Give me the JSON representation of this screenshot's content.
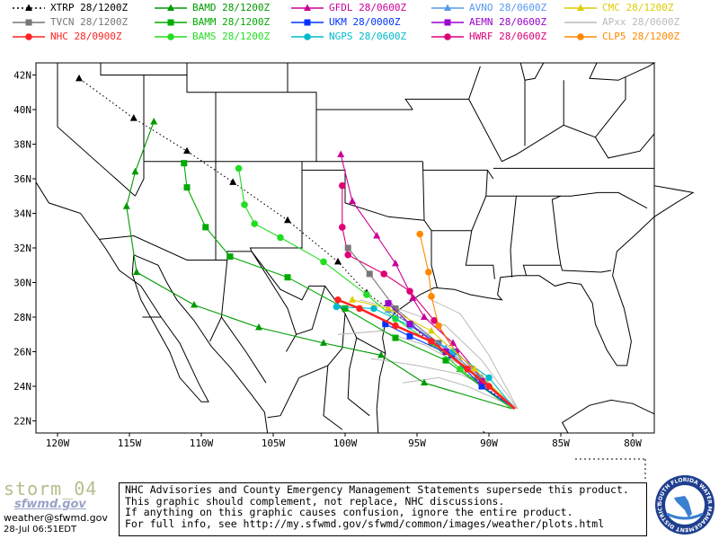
{
  "legend": [
    {
      "id": "xtrp",
      "label": "XTRP  28/1200Z",
      "color": "#000000",
      "marker": "triangle",
      "dashed": true
    },
    {
      "id": "bamd",
      "label": "BAMD 28/1200Z",
      "color": "#009900",
      "marker": "triangle"
    },
    {
      "id": "gfdl",
      "label": "GFDL  28/0600Z",
      "color": "#cc0099",
      "marker": "triangle"
    },
    {
      "id": "avno",
      "label": "AVNO 28/0600Z",
      "color": "#5599ee",
      "marker": "triangle"
    },
    {
      "id": "cmc",
      "label": "CMC 28/1200Z",
      "color": "#ddcc00",
      "marker": "triangle"
    },
    {
      "id": "tvcn",
      "label": "TVCN  28/1200Z",
      "color": "#777777",
      "marker": "square"
    },
    {
      "id": "bamm",
      "label": "BAMM 28/1200Z",
      "color": "#00aa00",
      "marker": "square"
    },
    {
      "id": "ukm",
      "label": "UKM   28/0000Z",
      "color": "#0033ff",
      "marker": "square"
    },
    {
      "id": "aemn",
      "label": "AEMN  28/0600Z",
      "color": "#9900cc",
      "marker": "square"
    },
    {
      "id": "apxx",
      "label": "APxx 28/0600Z",
      "color": "#bbbbbb",
      "marker": "none"
    },
    {
      "id": "nhc",
      "label": "NHC   28/0900Z",
      "color": "#ff2222",
      "marker": "circle"
    },
    {
      "id": "bams",
      "label": "BAMS 28/1200Z",
      "color": "#22dd22",
      "marker": "circle"
    },
    {
      "id": "ngps",
      "label": "NGPS 28/0600Z",
      "color": "#00bbcc",
      "marker": "circle"
    },
    {
      "id": "hwrf",
      "label": "HWRF  28/0600Z",
      "color": "#dd0077",
      "marker": "circle"
    },
    {
      "id": "clp5",
      "label": "CLP5 28/1200Z",
      "color": "#ff8800",
      "marker": "circle"
    }
  ],
  "axes": {
    "lon_labels": [
      "120W",
      "115W",
      "110W",
      "105W",
      "100W",
      "95W",
      "90W",
      "85W",
      "80W"
    ],
    "lon_values": [
      -120,
      -115,
      -110,
      -105,
      -100,
      -95,
      -90,
      -85,
      -80
    ],
    "lat_labels": [
      "42N",
      "40N",
      "38N",
      "36N",
      "34N",
      "32N",
      "30N",
      "28N",
      "26N",
      "24N",
      "22N"
    ],
    "lat_values": [
      42,
      40,
      38,
      36,
      34,
      32,
      30,
      28,
      26,
      24,
      22
    ],
    "lon_range": [
      -121.5,
      -78.5
    ],
    "lat_range": [
      21.3,
      42.7
    ]
  },
  "tracks": [
    {
      "id": "xtrp",
      "color": "#000000",
      "dashed": true,
      "marker": "triangle",
      "points": [
        [
          -88.2,
          22.7
        ],
        [
          -92,
          25
        ],
        [
          -95.5,
          27.6
        ],
        [
          -98.5,
          29.4
        ],
        [
          -100.5,
          31.2
        ],
        [
          -104,
          33.6
        ],
        [
          -107.8,
          35.8
        ],
        [
          -111,
          37.6
        ],
        [
          -114.7,
          39.5
        ],
        [
          -118.5,
          41.8
        ]
      ]
    },
    {
      "id": "bamd",
      "color": "#009900",
      "marker": "triangle",
      "points": [
        [
          -88.4,
          22.7
        ],
        [
          -94.5,
          24.2
        ],
        [
          -97.5,
          25.8
        ],
        [
          -101.5,
          26.5
        ],
        [
          -106,
          27.4
        ],
        [
          -110.5,
          28.7
        ],
        [
          -114.5,
          30.6
        ],
        [
          -115.2,
          34.4
        ],
        [
          -114.6,
          36.4
        ],
        [
          -113.3,
          39.3
        ]
      ]
    },
    {
      "id": "bamm",
      "color": "#00aa00",
      "marker": "square",
      "points": [
        [
          -88.4,
          22.7
        ],
        [
          -93,
          25.5
        ],
        [
          -96.5,
          26.8
        ],
        [
          -100,
          28.5
        ],
        [
          -104,
          30.3
        ],
        [
          -108,
          31.5
        ],
        [
          -109.7,
          33.2
        ],
        [
          -111,
          35.5
        ],
        [
          -111.2,
          36.9
        ]
      ]
    },
    {
      "id": "bams",
      "color": "#22dd22",
      "marker": "circle",
      "points": [
        [
          -88.4,
          22.7
        ],
        [
          -92,
          25
        ],
        [
          -94,
          26.5
        ],
        [
          -96.5,
          27.9
        ],
        [
          -98.5,
          29.3
        ],
        [
          -101.5,
          31.2
        ],
        [
          -104.5,
          32.6
        ],
        [
          -106.3,
          33.4
        ],
        [
          -107,
          34.5
        ],
        [
          -107.4,
          36.6
        ]
      ]
    },
    {
      "id": "gfdl",
      "color": "#cc0099",
      "marker": "triangle",
      "points": [
        [
          -88.3,
          22.7
        ],
        [
          -90.5,
          24.5
        ],
        [
          -92.5,
          26.5
        ],
        [
          -94.5,
          28
        ],
        [
          -95.3,
          29.1
        ],
        [
          -96.5,
          31.1
        ],
        [
          -97.8,
          32.7
        ],
        [
          -99.5,
          34.7
        ],
        [
          -100.3,
          37.4
        ]
      ]
    },
    {
      "id": "hwrf",
      "color": "#dd0077",
      "marker": "circle",
      "points": [
        [
          -88.3,
          22.7
        ],
        [
          -92.3,
          26
        ],
        [
          -93.8,
          27.8
        ],
        [
          -95.5,
          29.5
        ],
        [
          -97.3,
          30.5
        ],
        [
          -99.8,
          31.6
        ],
        [
          -100.2,
          33.2
        ],
        [
          -100.2,
          35.6
        ]
      ]
    },
    {
      "id": "clp5",
      "color": "#ff8800",
      "marker": "circle",
      "points": [
        [
          -88.2,
          22.7
        ],
        [
          -91.5,
          25
        ],
        [
          -93.5,
          27.5
        ],
        [
          -94,
          29.2
        ],
        [
          -94.2,
          30.6
        ],
        [
          -94.8,
          32.8
        ]
      ]
    },
    {
      "id": "tvcn",
      "color": "#777777",
      "marker": "square",
      "points": [
        [
          -88.2,
          22.7
        ],
        [
          -90.8,
          24.5
        ],
        [
          -93.5,
          26.5
        ],
        [
          -96.5,
          28.5
        ],
        [
          -98.3,
          30.5
        ],
        [
          -99.8,
          32
        ]
      ]
    },
    {
      "id": "nhc",
      "color": "#ff2222",
      "marker": "circle",
      "thick": true,
      "points": [
        [
          -88.2,
          22.7
        ],
        [
          -90,
          24
        ],
        [
          -91.5,
          25
        ],
        [
          -94,
          26.6
        ],
        [
          -96.5,
          27.5
        ],
        [
          -99,
          28.5
        ],
        [
          -100.5,
          29
        ]
      ]
    },
    {
      "id": "ukm",
      "color": "#0033ff",
      "marker": "square",
      "points": [
        [
          -88.2,
          22.7
        ],
        [
          -90.5,
          24
        ],
        [
          -92.6,
          25.8
        ],
        [
          -95.5,
          26.9
        ],
        [
          -97.2,
          27.6
        ]
      ]
    },
    {
      "id": "ngps",
      "color": "#00bbcc",
      "marker": "circle",
      "points": [
        [
          -88.2,
          22.7
        ],
        [
          -90,
          24.5
        ],
        [
          -92.5,
          26
        ],
        [
          -95.5,
          27.5
        ],
        [
          -98,
          28.5
        ],
        [
          -100.6,
          28.6
        ]
      ]
    },
    {
      "id": "avno",
      "color": "#5599ee",
      "marker": "triangle",
      "points": [
        [
          -88.2,
          22.7
        ],
        [
          -90.5,
          24.5
        ],
        [
          -93,
          26.2
        ],
        [
          -95.3,
          27.5
        ],
        [
          -97,
          28.4
        ]
      ]
    },
    {
      "id": "cmc",
      "color": "#ddcc00",
      "marker": "triangle",
      "points": [
        [
          -88.2,
          22.7
        ],
        [
          -91,
          25
        ],
        [
          -94,
          27.2
        ],
        [
          -97,
          28.5
        ],
        [
          -99.5,
          29
        ]
      ]
    },
    {
      "id": "aemn",
      "color": "#9900cc",
      "marker": "square",
      "points": [
        [
          -88.2,
          22.7
        ],
        [
          -90.5,
          24.3
        ],
        [
          -93,
          26
        ],
        [
          -95.5,
          27.6
        ],
        [
          -97,
          28.8
        ]
      ]
    },
    {
      "id": "apxx",
      "color": "#bbbbbb",
      "marker": "none",
      "points": [
        [
          -88,
          22.7
        ],
        [
          -91,
          24.8
        ],
        [
          -94.5,
          26.4
        ],
        [
          -97.5,
          27.2
        ],
        [
          -100.5,
          27
        ]
      ]
    }
  ],
  "footer": {
    "brand_name": "storm_04",
    "brand_url": "sfwmd.gov",
    "email": "weather@sfwmd.gov",
    "timestamp": "28-Jul 06:51EDT",
    "disclaimer": [
      "NHC Advisories and County Emergency Management Statements supersede this product.",
      "This graphic should complement, not replace, NHC discussions.",
      "If anything on this graphic causes confusion, ignore the entire product.",
      "For full info, see  http://my.sfwmd.gov/sfwmd/common/images/weather/plots.html"
    ],
    "logo_text": "SOUTH FLORIDA WATER MANAGEMENT DISTRICT"
  }
}
